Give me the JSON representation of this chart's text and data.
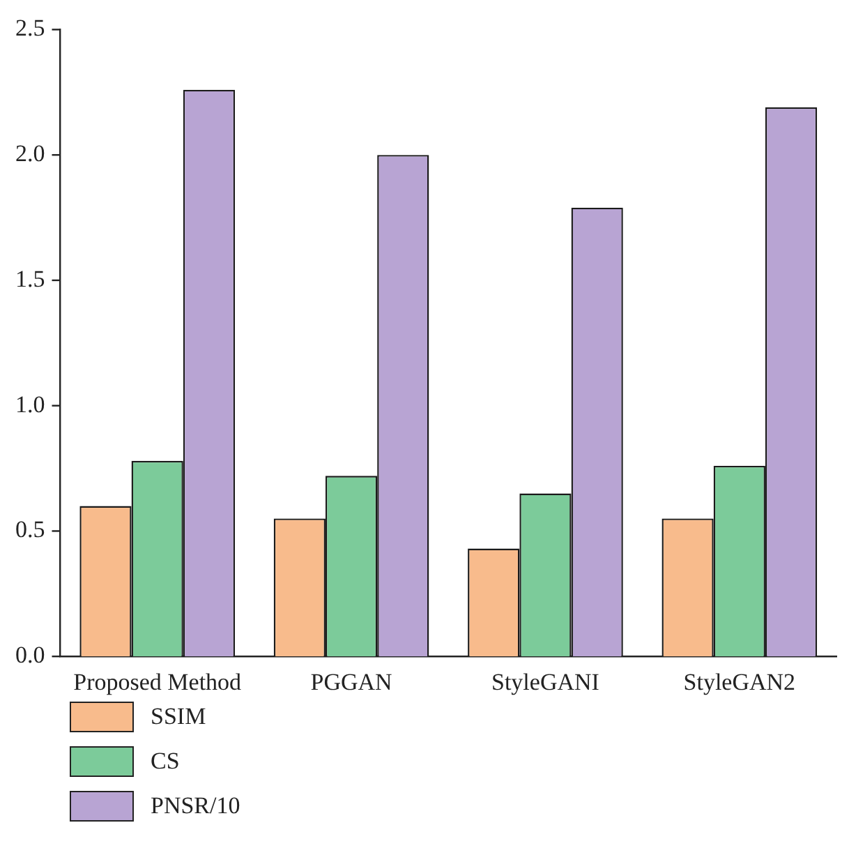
{
  "chart_data": {
    "type": "bar",
    "categories": [
      "Proposed Method",
      "PGGAN",
      "StyleGANI",
      "StyleGAN2"
    ],
    "series": [
      {
        "name": "SSIM",
        "color": "#f8bb8c",
        "values": [
          0.6,
          0.55,
          0.43,
          0.55
        ]
      },
      {
        "name": "CS",
        "color": "#7ccb9a",
        "values": [
          0.78,
          0.72,
          0.65,
          0.76
        ]
      },
      {
        "name": "PNSR/10",
        "color": "#b8a4d3",
        "values": [
          2.26,
          2.0,
          1.79,
          2.19
        ]
      }
    ],
    "ylim": [
      0,
      2.5
    ],
    "yticks": [
      {
        "value": 0,
        "label": "0.0"
      },
      {
        "value": 0.5,
        "label": "0.5"
      },
      {
        "value": 1,
        "label": "1.0"
      },
      {
        "value": 1.5,
        "label": "1.5"
      },
      {
        "value": 2,
        "label": "2.0"
      },
      {
        "value": 2.5,
        "label": "2.5"
      }
    ],
    "grid": false,
    "legend": "bottom left"
  }
}
